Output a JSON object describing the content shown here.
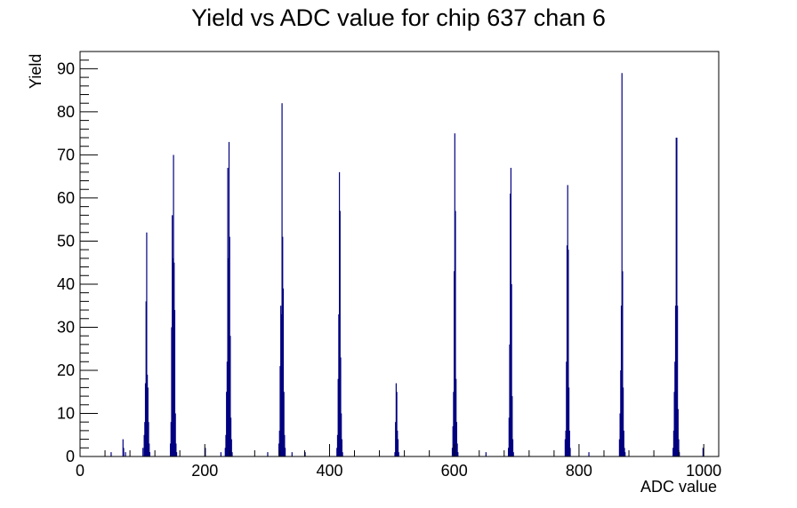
{
  "chart_data": {
    "type": "bar",
    "title": "Yield vs ADC value for chip 637 chan 6",
    "xlabel": "ADC value",
    "ylabel": "Yield",
    "xlim": [
      0,
      1024
    ],
    "ylim": [
      0,
      94
    ],
    "x_ticks": [
      0,
      200,
      400,
      600,
      800,
      1000
    ],
    "y_ticks": [
      0,
      10,
      20,
      30,
      40,
      50,
      60,
      70,
      80,
      90
    ],
    "bar_color": "#000080",
    "grid": false,
    "legend": "none",
    "bins": [
      {
        "x": 49,
        "y": 1
      },
      {
        "x": 68,
        "y": 4
      },
      {
        "x": 69,
        "y": 2
      },
      {
        "x": 72,
        "y": 1
      },
      {
        "x": 100,
        "y": 2
      },
      {
        "x": 102,
        "y": 5
      },
      {
        "x": 103,
        "y": 8
      },
      {
        "x": 104,
        "y": 17
      },
      {
        "x": 105,
        "y": 36
      },
      {
        "x": 106,
        "y": 52
      },
      {
        "x": 107,
        "y": 19
      },
      {
        "x": 108,
        "y": 16
      },
      {
        "x": 109,
        "y": 8
      },
      {
        "x": 110,
        "y": 3
      },
      {
        "x": 111,
        "y": 1
      },
      {
        "x": 144,
        "y": 3
      },
      {
        "x": 145,
        "y": 8
      },
      {
        "x": 146,
        "y": 30
      },
      {
        "x": 147,
        "y": 56
      },
      {
        "x": 148,
        "y": 46
      },
      {
        "x": 149,
        "y": 70
      },
      {
        "x": 150,
        "y": 45
      },
      {
        "x": 151,
        "y": 34
      },
      {
        "x": 152,
        "y": 10
      },
      {
        "x": 153,
        "y": 3
      },
      {
        "x": 154,
        "y": 1
      },
      {
        "x": 200,
        "y": 2
      },
      {
        "x": 225,
        "y": 1
      },
      {
        "x": 232,
        "y": 2
      },
      {
        "x": 233,
        "y": 5
      },
      {
        "x": 234,
        "y": 15
      },
      {
        "x": 235,
        "y": 22
      },
      {
        "x": 236,
        "y": 67
      },
      {
        "x": 237,
        "y": 46
      },
      {
        "x": 238,
        "y": 73
      },
      {
        "x": 239,
        "y": 51
      },
      {
        "x": 240,
        "y": 28
      },
      {
        "x": 241,
        "y": 9
      },
      {
        "x": 242,
        "y": 4
      },
      {
        "x": 243,
        "y": 1
      },
      {
        "x": 300,
        "y": 1
      },
      {
        "x": 318,
        "y": 3
      },
      {
        "x": 319,
        "y": 6
      },
      {
        "x": 320,
        "y": 21
      },
      {
        "x": 321,
        "y": 35
      },
      {
        "x": 322,
        "y": 33
      },
      {
        "x": 323,
        "y": 82
      },
      {
        "x": 324,
        "y": 51
      },
      {
        "x": 325,
        "y": 39
      },
      {
        "x": 326,
        "y": 15
      },
      {
        "x": 327,
        "y": 5
      },
      {
        "x": 328,
        "y": 2
      },
      {
        "x": 339,
        "y": 1
      },
      {
        "x": 360,
        "y": 1
      },
      {
        "x": 411,
        "y": 2
      },
      {
        "x": 412,
        "y": 5
      },
      {
        "x": 413,
        "y": 18
      },
      {
        "x": 414,
        "y": 33
      },
      {
        "x": 415,
        "y": 66
      },
      {
        "x": 416,
        "y": 57
      },
      {
        "x": 417,
        "y": 23
      },
      {
        "x": 418,
        "y": 10
      },
      {
        "x": 419,
        "y": 4
      },
      {
        "x": 420,
        "y": 1
      },
      {
        "x": 504,
        "y": 1
      },
      {
        "x": 505,
        "y": 8
      },
      {
        "x": 506,
        "y": 17
      },
      {
        "x": 507,
        "y": 15
      },
      {
        "x": 508,
        "y": 6
      },
      {
        "x": 509,
        "y": 4
      },
      {
        "x": 510,
        "y": 1
      },
      {
        "x": 596,
        "y": 2
      },
      {
        "x": 597,
        "y": 7
      },
      {
        "x": 598,
        "y": 15
      },
      {
        "x": 599,
        "y": 43
      },
      {
        "x": 600,
        "y": 75
      },
      {
        "x": 601,
        "y": 57
      },
      {
        "x": 602,
        "y": 18
      },
      {
        "x": 603,
        "y": 8
      },
      {
        "x": 604,
        "y": 3
      },
      {
        "x": 605,
        "y": 1
      },
      {
        "x": 650,
        "y": 1
      },
      {
        "x": 686,
        "y": 2
      },
      {
        "x": 687,
        "y": 9
      },
      {
        "x": 688,
        "y": 26
      },
      {
        "x": 689,
        "y": 61
      },
      {
        "x": 690,
        "y": 67
      },
      {
        "x": 691,
        "y": 40
      },
      {
        "x": 692,
        "y": 14
      },
      {
        "x": 693,
        "y": 4
      },
      {
        "x": 694,
        "y": 1
      },
      {
        "x": 777,
        "y": 4
      },
      {
        "x": 778,
        "y": 6
      },
      {
        "x": 779,
        "y": 22
      },
      {
        "x": 780,
        "y": 49
      },
      {
        "x": 781,
        "y": 63
      },
      {
        "x": 782,
        "y": 48
      },
      {
        "x": 783,
        "y": 16
      },
      {
        "x": 784,
        "y": 6
      },
      {
        "x": 785,
        "y": 2
      },
      {
        "x": 815,
        "y": 1
      },
      {
        "x": 864,
        "y": 4
      },
      {
        "x": 865,
        "y": 10
      },
      {
        "x": 866,
        "y": 20
      },
      {
        "x": 867,
        "y": 35
      },
      {
        "x": 868,
        "y": 89
      },
      {
        "x": 869,
        "y": 43
      },
      {
        "x": 870,
        "y": 16
      },
      {
        "x": 871,
        "y": 6
      },
      {
        "x": 872,
        "y": 2
      },
      {
        "x": 873,
        "y": 1
      },
      {
        "x": 950,
        "y": 2
      },
      {
        "x": 951,
        "y": 6
      },
      {
        "x": 952,
        "y": 15
      },
      {
        "x": 953,
        "y": 22
      },
      {
        "x": 954,
        "y": 35
      },
      {
        "x": 955,
        "y": 74
      },
      {
        "x": 956,
        "y": 74
      },
      {
        "x": 957,
        "y": 35
      },
      {
        "x": 958,
        "y": 11
      },
      {
        "x": 959,
        "y": 4
      },
      {
        "x": 960,
        "y": 1
      },
      {
        "x": 998,
        "y": 2
      }
    ]
  }
}
